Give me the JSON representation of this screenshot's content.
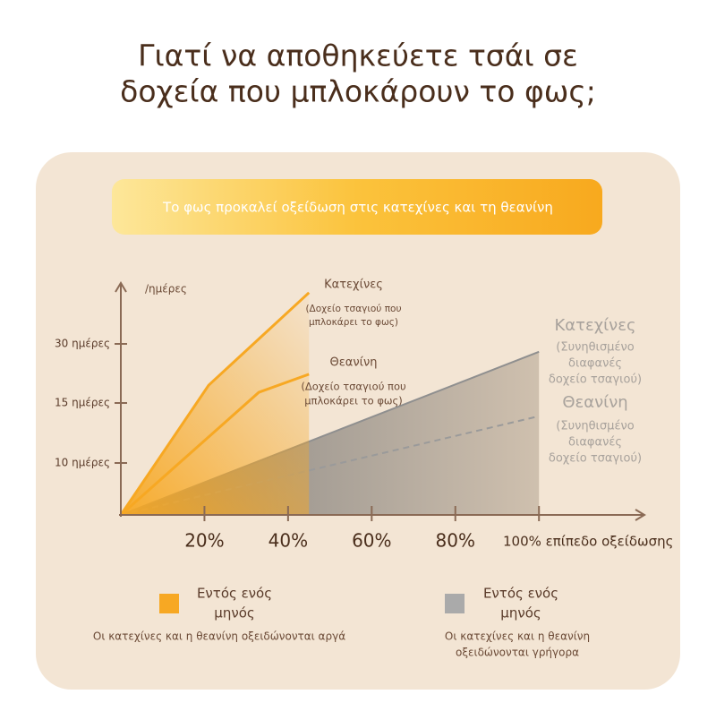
{
  "chart_data": {
    "type": "line",
    "title": [
      "Γιατί να αποθηκεύετε τσάι σε",
      "δοχεία που μπλοκάρουν το φως;"
    ],
    "subtitle": "Το φως προκαλεί οξείδωση στις κατεχίνες και τη θεανίνη",
    "y_label": "/ημέρες",
    "xlim": [
      0,
      125
    ],
    "ylim": [
      0,
      45
    ],
    "xticks": [
      {
        "value": 20,
        "label": "20%"
      },
      {
        "value": 40,
        "label": "40%"
      },
      {
        "value": 60,
        "label": "60%"
      },
      {
        "value": 80,
        "label": "80%"
      },
      {
        "value": 100,
        "label": "100% επίπεδο οξείδωσης"
      }
    ],
    "yticks": [
      {
        "value": 10,
        "label": "10 ημέρες"
      },
      {
        "value": 15,
        "label": "15 ημέρες"
      },
      {
        "value": 30,
        "label": "30 ημέρες"
      }
    ],
    "series": [
      {
        "name": "Κατεχίνες",
        "note": [
          "(Δοχείο τσαγιού που",
          "μπλοκάρει το φως)"
        ],
        "color": "#f7a823",
        "dashed": false,
        "fill": true,
        "x": [
          0,
          21,
          45
        ],
        "values": [
          0,
          19.5,
          43
        ]
      },
      {
        "name": "Θεανίνη",
        "note": [
          "(Δοχείο τσαγιού που",
          "μπλοκάρει το φως)"
        ],
        "color": "#f7a823",
        "dashed": false,
        "fill": false,
        "x": [
          0,
          33,
          45
        ],
        "values": [
          0,
          17.7,
          22.3
        ]
      },
      {
        "name": "Κατεχίνες",
        "note": [
          "(Συνηθισμένο",
          "διαφανές",
          "δοχείο τσαγιού)"
        ],
        "color": "#8f8f8f",
        "dashed": false,
        "fill": true,
        "x": [
          0,
          100
        ],
        "values": [
          0,
          28
        ]
      },
      {
        "name": "Θεανίνη",
        "note": [
          "(Συνηθισμένο",
          "διαφανές",
          "δοχείο τσαγιού)"
        ],
        "color": "#9a9a9a",
        "dashed": true,
        "fill": false,
        "x": [
          0,
          100
        ],
        "values": [
          0,
          13.9
        ]
      }
    ],
    "legend": [
      {
        "title": [
          "Εντός ενός",
          "μηνός"
        ],
        "text": [
          "Οι κατεχίνες και η θεανίνη οξειδώνονται αργά"
        ],
        "color": "#f7a823"
      },
      {
        "title": [
          "Εντός ενός",
          "μηνός"
        ],
        "text": [
          "Οι κατεχίνες και η θεανίνη",
          "οξειδώνονται γρήγορα"
        ],
        "color": "#aaaaaa"
      }
    ]
  }
}
